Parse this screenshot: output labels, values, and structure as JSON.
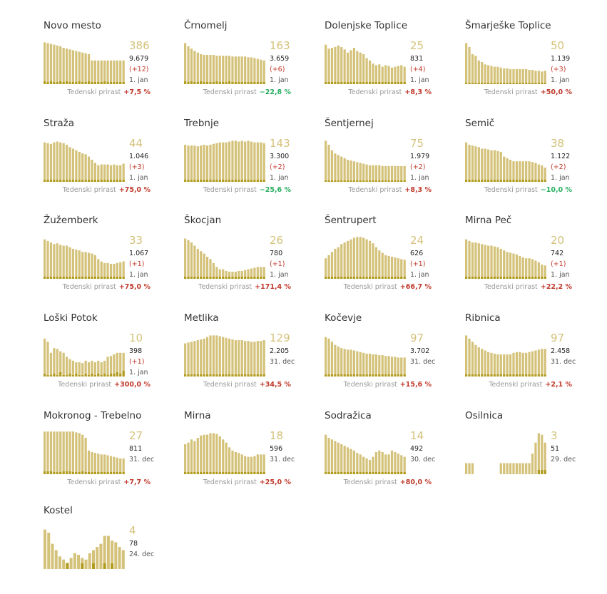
{
  "growth_label": "Tedenski prirast",
  "chart_data": [
    {
      "type": "bar",
      "title": "Novo mesto",
      "current": "386",
      "total": "9.679",
      "increase": "(+12)",
      "date": "1. jan",
      "growth": "+7,5 %",
      "growth_dir": "up",
      "values": [
        53,
        52,
        51,
        50,
        49,
        48,
        46,
        45,
        44,
        43,
        42,
        41,
        40,
        39,
        38,
        30,
        30,
        30,
        30,
        30,
        30,
        30,
        30,
        30,
        30,
        30
      ],
      "daily": [
        4,
        3,
        4,
        3,
        3,
        4,
        3,
        4,
        3,
        3,
        3,
        4,
        3,
        3,
        4,
        3,
        3,
        3,
        3,
        4,
        3,
        3,
        3,
        3,
        3,
        3
      ]
    },
    {
      "type": "bar",
      "title": "Črnomelj",
      "current": "163",
      "total": "3.659",
      "increase": "(+6)",
      "date": "1. jan",
      "growth": "−22,8 %",
      "growth_dir": "down",
      "values": [
        52,
        48,
        45,
        42,
        40,
        38,
        37,
        37,
        37,
        37,
        36,
        36,
        36,
        36,
        36,
        35,
        35,
        35,
        35,
        35,
        34,
        34,
        33,
        32,
        31,
        30
      ],
      "daily": [
        4,
        3,
        4,
        3,
        3,
        4,
        3,
        3,
        3,
        3,
        4,
        3,
        3,
        3,
        4,
        3,
        3,
        3,
        3,
        3,
        3,
        3,
        3,
        3,
        3,
        3
      ]
    },
    {
      "type": "bar",
      "title": "Dolenjske Toplice",
      "current": "25",
      "total": "831",
      "increase": "(+4)",
      "date": "1. jan",
      "growth": "+8,3 %",
      "growth_dir": "up",
      "values": [
        50,
        45,
        46,
        47,
        49,
        47,
        44,
        40,
        43,
        46,
        42,
        40,
        38,
        33,
        30,
        26,
        24,
        25,
        22,
        24,
        23,
        21,
        22,
        23,
        24,
        22
      ],
      "daily": [
        3,
        3,
        3,
        3,
        3,
        3,
        3,
        3,
        3,
        3,
        3,
        3,
        3,
        3,
        3,
        3,
        3,
        3,
        3,
        3,
        3,
        3,
        3,
        3,
        3,
        3
      ]
    },
    {
      "type": "bar",
      "title": "Šmarješke Toplice",
      "current": "50",
      "total": "1.139",
      "increase": "(+3)",
      "date": "1. jan",
      "growth": "+50,0 %",
      "growth_dir": "up",
      "values": [
        52,
        47,
        38,
        36,
        30,
        28,
        25,
        24,
        23,
        22,
        22,
        21,
        20,
        20,
        19,
        19,
        19,
        19,
        19,
        19,
        18,
        18,
        17,
        17,
        16,
        17
      ],
      "daily": [
        2,
        2,
        2,
        2,
        2,
        2,
        2,
        2,
        2,
        2,
        2,
        2,
        2,
        2,
        2,
        2,
        2,
        2,
        2,
        2,
        2,
        2,
        2,
        2,
        2,
        2
      ]
    },
    {
      "type": "bar",
      "title": "Straža",
      "current": "44",
      "total": "1.046",
      "increase": "(+3)",
      "date": "1. jan",
      "growth": "+75,0 %",
      "growth_dir": "up",
      "values": [
        50,
        49,
        48,
        50,
        51,
        50,
        49,
        47,
        44,
        42,
        40,
        38,
        36,
        35,
        32,
        28,
        24,
        21,
        22,
        22,
        22,
        21,
        22,
        21,
        21,
        23
      ],
      "daily": [
        3,
        3,
        3,
        3,
        3,
        3,
        3,
        3,
        3,
        3,
        3,
        3,
        3,
        3,
        3,
        3,
        3,
        3,
        3,
        3,
        3,
        3,
        3,
        3,
        3,
        3
      ]
    },
    {
      "type": "bar",
      "title": "Trebnje",
      "current": "143",
      "total": "3.300",
      "increase": "(+2)",
      "date": "1. jan",
      "growth": "−25,6 %",
      "growth_dir": "down",
      "values": [
        47,
        46,
        46,
        46,
        45,
        46,
        47,
        46,
        47,
        48,
        49,
        50,
        50,
        50,
        51,
        52,
        52,
        51,
        52,
        51,
        52,
        51,
        50,
        50,
        50,
        49
      ],
      "daily": [
        3,
        3,
        3,
        3,
        3,
        3,
        3,
        3,
        3,
        3,
        3,
        3,
        3,
        3,
        3,
        3,
        3,
        3,
        3,
        3,
        3,
        3,
        3,
        3,
        3,
        3
      ]
    },
    {
      "type": "bar",
      "title": "Šentjernej",
      "current": "75",
      "total": "1.979",
      "increase": "(+2)",
      "date": "1. jan",
      "growth": "+8,3 %",
      "growth_dir": "up",
      "values": [
        52,
        47,
        40,
        36,
        34,
        32,
        30,
        28,
        27,
        26,
        25,
        24,
        23,
        22,
        21,
        21,
        21,
        21,
        20,
        20,
        20,
        20,
        20,
        20,
        20,
        20
      ],
      "daily": [
        2,
        2,
        2,
        2,
        2,
        2,
        2,
        2,
        2,
        2,
        2,
        2,
        2,
        2,
        2,
        2,
        2,
        2,
        2,
        2,
        2,
        2,
        2,
        2,
        2,
        2
      ]
    },
    {
      "type": "bar",
      "title": "Semič",
      "current": "38",
      "total": "1.122",
      "increase": "(+2)",
      "date": "1. jan",
      "growth": "−10,0 %",
      "growth_dir": "down",
      "values": [
        50,
        47,
        46,
        45,
        44,
        42,
        42,
        41,
        40,
        40,
        39,
        38,
        32,
        30,
        28,
        26,
        26,
        26,
        26,
        26,
        26,
        25,
        24,
        22,
        21,
        18
      ],
      "daily": [
        3,
        3,
        3,
        3,
        3,
        3,
        3,
        3,
        3,
        3,
        3,
        3,
        3,
        3,
        3,
        3,
        3,
        3,
        3,
        3,
        3,
        3,
        3,
        3,
        3,
        3
      ]
    },
    {
      "type": "bar",
      "title": "Žužemberk",
      "current": "33",
      "total": "1.067",
      "increase": "(+1)",
      "date": "1. jan",
      "growth": "+75,0 %",
      "growth_dir": "up",
      "values": [
        50,
        48,
        46,
        44,
        45,
        43,
        42,
        42,
        40,
        38,
        37,
        36,
        34,
        34,
        33,
        32,
        30,
        25,
        22,
        20,
        20,
        19,
        19,
        20,
        21,
        22
      ],
      "daily": [
        3,
        3,
        3,
        3,
        3,
        3,
        3,
        3,
        3,
        3,
        3,
        3,
        3,
        3,
        3,
        3,
        3,
        3,
        3,
        3,
        3,
        3,
        3,
        3,
        3,
        3
      ]
    },
    {
      "type": "bar",
      "title": "Škocjan",
      "current": "26",
      "total": "780",
      "increase": "(+1)",
      "date": "1. jan",
      "growth": "+171,4 %",
      "growth_dir": "up",
      "values": [
        51,
        49,
        46,
        42,
        38,
        35,
        32,
        28,
        25,
        20,
        15,
        12,
        12,
        10,
        9,
        9,
        9,
        10,
        10,
        11,
        12,
        13,
        14,
        15,
        15,
        15
      ],
      "daily": [
        3,
        3,
        3,
        3,
        3,
        3,
        3,
        3,
        3,
        3,
        3,
        3,
        3,
        3,
        3,
        3,
        3,
        3,
        3,
        3,
        3,
        3,
        3,
        3,
        3,
        3
      ]
    },
    {
      "type": "bar",
      "title": "Šentrupert",
      "current": "24",
      "total": "626",
      "increase": "(+1)",
      "date": "1. jan",
      "growth": "+66,7 %",
      "growth_dir": "up",
      "values": [
        26,
        30,
        34,
        38,
        40,
        44,
        46,
        48,
        50,
        52,
        53,
        53,
        52,
        50,
        48,
        45,
        40,
        36,
        33,
        30,
        29,
        28,
        27,
        26,
        25,
        24
      ],
      "daily": [
        3,
        3,
        3,
        3,
        3,
        3,
        3,
        3,
        3,
        3,
        3,
        3,
        3,
        3,
        3,
        3,
        3,
        3,
        3,
        3,
        3,
        3,
        3,
        3,
        3,
        3
      ]
    },
    {
      "type": "bar",
      "title": "Mirna Peč",
      "current": "20",
      "total": "742",
      "increase": "(+1)",
      "date": "1. jan",
      "growth": "+22,2 %",
      "growth_dir": "up",
      "values": [
        50,
        48,
        46,
        46,
        45,
        44,
        43,
        42,
        42,
        41,
        40,
        38,
        36,
        34,
        33,
        32,
        31,
        29,
        27,
        26,
        26,
        25,
        23,
        21,
        18,
        17
      ],
      "daily": [
        3,
        3,
        3,
        3,
        3,
        3,
        3,
        3,
        3,
        3,
        3,
        3,
        3,
        3,
        3,
        3,
        3,
        3,
        3,
        3,
        3,
        3,
        3,
        3,
        3,
        3
      ]
    },
    {
      "type": "bar",
      "title": "Loški Potok",
      "current": "10",
      "total": "398",
      "increase": "(+1)",
      "date": "1. jan",
      "growth": "+300,0 %",
      "growth_dir": "up",
      "values": [
        48,
        44,
        30,
        36,
        35,
        32,
        30,
        25,
        22,
        20,
        18,
        18,
        17,
        20,
        18,
        20,
        18,
        20,
        18,
        20,
        25,
        26,
        28,
        30,
        30,
        30
      ],
      "daily": [
        4,
        2,
        2,
        4,
        2,
        6,
        2,
        2,
        4,
        2,
        4,
        2,
        2,
        4,
        2,
        4,
        2,
        4,
        2,
        4,
        2,
        4,
        4,
        6,
        4,
        8
      ]
    },
    {
      "type": "bar",
      "title": "Metlika",
      "current": "129",
      "total": "2.205",
      "increase": "",
      "date": "31. dec",
      "growth": "+34,5 %",
      "growth_dir": "up",
      "values": [
        42,
        43,
        44,
        45,
        46,
        47,
        48,
        50,
        52,
        52,
        52,
        51,
        50,
        49,
        48,
        47,
        46,
        46,
        46,
        45,
        45,
        44,
        44,
        45,
        45,
        46
      ],
      "daily": [
        3,
        3,
        3,
        3,
        3,
        3,
        3,
        3,
        3,
        3,
        3,
        3,
        3,
        3,
        3,
        3,
        3,
        3,
        3,
        3,
        3,
        3,
        3,
        3,
        3,
        3
      ]
    },
    {
      "type": "bar",
      "title": "Kočevje",
      "current": "97",
      "total": "3.702",
      "increase": "",
      "date": "31. dec",
      "growth": "+15,6 %",
      "growth_dir": "up",
      "values": [
        50,
        48,
        44,
        40,
        38,
        36,
        35,
        34,
        34,
        33,
        32,
        31,
        30,
        29,
        29,
        28,
        28,
        27,
        27,
        26,
        26,
        25,
        25,
        24,
        24,
        24
      ],
      "daily": [
        3,
        3,
        3,
        3,
        3,
        3,
        3,
        3,
        3,
        3,
        3,
        3,
        3,
        3,
        3,
        3,
        3,
        3,
        3,
        3,
        3,
        3,
        3,
        3,
        3,
        3
      ]
    },
    {
      "type": "bar",
      "title": "Ribnica",
      "current": "97",
      "total": "2.458",
      "increase": "",
      "date": "31. dec",
      "growth": "+2,1 %",
      "growth_dir": "up",
      "values": [
        52,
        48,
        44,
        40,
        37,
        35,
        33,
        31,
        30,
        29,
        28,
        28,
        28,
        28,
        28,
        30,
        31,
        31,
        30,
        30,
        31,
        32,
        33,
        34,
        35,
        35
      ],
      "daily": [
        3,
        3,
        3,
        3,
        3,
        3,
        3,
        3,
        3,
        3,
        3,
        3,
        3,
        3,
        3,
        3,
        3,
        3,
        3,
        3,
        3,
        3,
        3,
        3,
        3,
        3
      ]
    },
    {
      "type": "bar",
      "title": "Mokronog - Trebelno",
      "current": "27",
      "total": "811",
      "increase": "",
      "date": "31. dec",
      "growth": "+7,7 %",
      "growth_dir": "up",
      "values": [
        54,
        54,
        54,
        54,
        54,
        54,
        54,
        54,
        54,
        54,
        53,
        52,
        50,
        46,
        30,
        28,
        27,
        26,
        25,
        25,
        24,
        23,
        22,
        21,
        20,
        20
      ],
      "daily": [
        4,
        4,
        4,
        3,
        3,
        3,
        4,
        4,
        4,
        3,
        3,
        3,
        4,
        3,
        3,
        3,
        3,
        3,
        3,
        3,
        3,
        3,
        3,
        3,
        3,
        3
      ]
    },
    {
      "type": "bar",
      "title": "Mirna",
      "current": "18",
      "total": "596",
      "increase": "",
      "date": "31. dec",
      "growth": "+25,0 %",
      "growth_dir": "up",
      "values": [
        38,
        40,
        44,
        42,
        46,
        49,
        50,
        50,
        52,
        52,
        51,
        48,
        44,
        40,
        34,
        30,
        28,
        27,
        25,
        23,
        22,
        22,
        23,
        25,
        25,
        25
      ],
      "daily": [
        3,
        3,
        3,
        3,
        3,
        3,
        3,
        3,
        3,
        3,
        3,
        3,
        3,
        3,
        3,
        3,
        3,
        3,
        3,
        3,
        3,
        3,
        3,
        3,
        3,
        3
      ]
    },
    {
      "type": "bar",
      "title": "Sodražica",
      "current": "14",
      "total": "492",
      "increase": "",
      "date": "30. dec",
      "growth": "+80,0 %",
      "growth_dir": "up",
      "values": [
        50,
        46,
        44,
        42,
        40,
        38,
        36,
        34,
        32,
        30,
        27,
        25,
        22,
        20,
        18,
        22,
        28,
        30,
        28,
        25,
        25,
        30,
        28,
        26,
        24,
        22
      ],
      "daily": [
        3,
        3,
        3,
        3,
        3,
        3,
        3,
        3,
        3,
        3,
        3,
        3,
        3,
        3,
        3,
        3,
        3,
        3,
        3,
        3,
        3,
        3,
        3,
        3,
        3,
        3
      ]
    },
    {
      "type": "bar",
      "title": "Osilnica",
      "current": "3",
      "total": "51",
      "increase": "",
      "date": "29. dec",
      "growth": "",
      "growth_dir": "up",
      "values": [
        14,
        14,
        14,
        0,
        0,
        0,
        0,
        0,
        0,
        0,
        0,
        14,
        14,
        14,
        14,
        14,
        14,
        14,
        14,
        14,
        14,
        26,
        40,
        52,
        50,
        40
      ],
      "daily": [
        0,
        0,
        0,
        0,
        0,
        0,
        0,
        0,
        0,
        0,
        0,
        0,
        0,
        0,
        0,
        0,
        0,
        0,
        0,
        0,
        0,
        0,
        0,
        6,
        6,
        6
      ]
    },
    {
      "type": "bar",
      "title": "Kostel",
      "current": "4",
      "total": "78",
      "increase": "",
      "date": "24. dec",
      "growth": "",
      "growth_dir": "up",
      "values": [
        50,
        46,
        32,
        24,
        16,
        12,
        8,
        14,
        20,
        18,
        14,
        12,
        20,
        24,
        28,
        32,
        42,
        42,
        36,
        34,
        28,
        24
      ],
      "daily": [
        0,
        0,
        0,
        0,
        0,
        0,
        8,
        0,
        0,
        0,
        8,
        0,
        0,
        8,
        0,
        0,
        8,
        0,
        8,
        0,
        0,
        0
      ]
    }
  ]
}
